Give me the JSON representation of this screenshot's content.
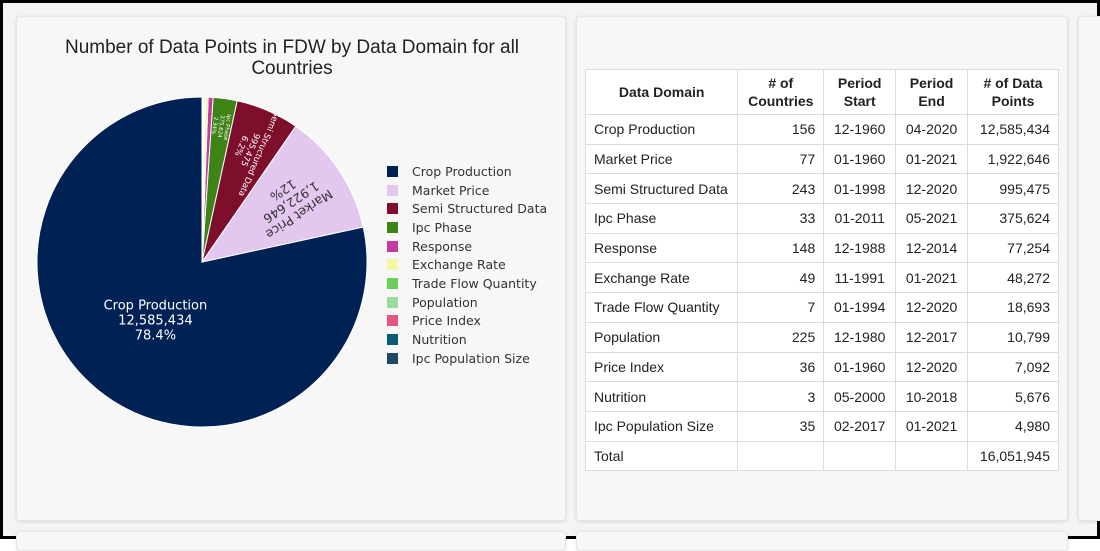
{
  "chart_data": {
    "type": "pie",
    "title": "Number of Data Points in FDW by Data Domain for all Countries",
    "slices": [
      {
        "label": "Crop Production",
        "value": 12585434,
        "value_text": "12,585,434",
        "percent_text": "78.4%",
        "color": "#002153"
      },
      {
        "label": "Market Price",
        "value": 1922646,
        "value_text": "1,922,646",
        "percent_text": "12%",
        "color": "#e2c7ee"
      },
      {
        "label": "Semi Structured Data",
        "value": 995475,
        "value_text": "995,475",
        "percent_text": "6.2%",
        "color": "#7d0f2c"
      },
      {
        "label": "Ipc Phase",
        "value": 375624,
        "value_text": "375,624",
        "percent_text": "2.34%",
        "color": "#3e8316"
      },
      {
        "label": "Response",
        "value": 77254,
        "value_text": "",
        "percent_text": "",
        "color": "#c43aa3"
      },
      {
        "label": "Exchange Rate",
        "value": 48272,
        "value_text": "",
        "percent_text": "",
        "color": "#f5f7a6"
      },
      {
        "label": "Trade Flow Quantity",
        "value": 18693,
        "value_text": "",
        "percent_text": "",
        "color": "#69ce5b"
      },
      {
        "label": "Population",
        "value": 10799,
        "value_text": "",
        "percent_text": "",
        "color": "#98dca2"
      },
      {
        "label": "Price Index",
        "value": 7092,
        "value_text": "",
        "percent_text": "",
        "color": "#e3577f"
      },
      {
        "label": "Nutrition",
        "value": 5676,
        "value_text": "",
        "percent_text": "",
        "color": "#0c5a78"
      },
      {
        "label": "Ipc Population Size",
        "value": 4980,
        "value_text": "",
        "percent_text": "",
        "color": "#1c4a63"
      }
    ],
    "legend_position": "right"
  },
  "table": {
    "headers": {
      "domain": "Data Domain",
      "countries": "# of Countries",
      "period_start": "Period Start",
      "period_end": "Period End",
      "data_points": "# of Data Points"
    },
    "rows": [
      {
        "domain": "Crop Production",
        "countries": "156",
        "start": "12-1960",
        "end": "04-2020",
        "points": "12,585,434"
      },
      {
        "domain": "Market Price",
        "countries": "77",
        "start": "01-1960",
        "end": "01-2021",
        "points": "1,922,646"
      },
      {
        "domain": "Semi Structured Data",
        "countries": "243",
        "start": "01-1998",
        "end": "12-2020",
        "points": "995,475"
      },
      {
        "domain": "Ipc Phase",
        "countries": "33",
        "start": "01-2011",
        "end": "05-2021",
        "points": "375,624"
      },
      {
        "domain": "Response",
        "countries": "148",
        "start": "12-1988",
        "end": "12-2014",
        "points": "77,254"
      },
      {
        "domain": "Exchange Rate",
        "countries": "49",
        "start": "11-1991",
        "end": "01-2021",
        "points": "48,272"
      },
      {
        "domain": "Trade Flow Quantity",
        "countries": "7",
        "start": "01-1994",
        "end": "12-2020",
        "points": "18,693"
      },
      {
        "domain": "Population",
        "countries": "225",
        "start": "12-1980",
        "end": "12-2017",
        "points": "10,799"
      },
      {
        "domain": "Price Index",
        "countries": "36",
        "start": "01-1960",
        "end": "12-2020",
        "points": "7,092"
      },
      {
        "domain": "Nutrition",
        "countries": "3",
        "start": "05-2000",
        "end": "10-2018",
        "points": "5,676"
      },
      {
        "domain": "Ipc Population Size",
        "countries": "35",
        "start": "02-2017",
        "end": "01-2021",
        "points": "4,980"
      }
    ],
    "total": {
      "label": "Total",
      "points": "16,051,945"
    }
  }
}
